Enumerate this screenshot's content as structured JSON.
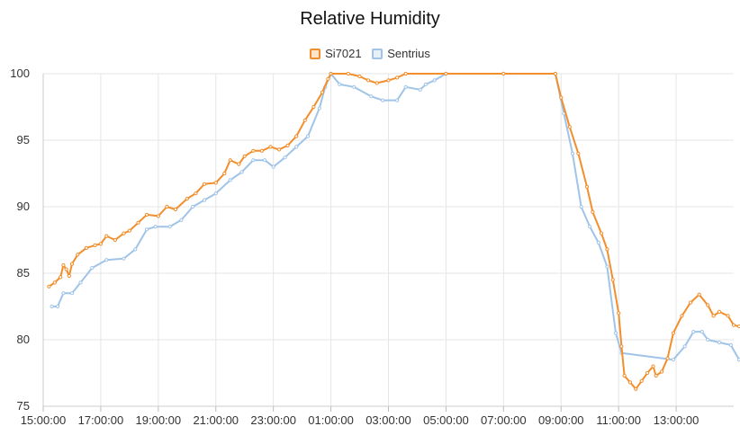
{
  "chart_data": {
    "type": "line",
    "title": "Relative Humidity",
    "xlabel": "",
    "ylabel": "",
    "ylim": [
      75,
      100
    ],
    "yticks": [
      75,
      80,
      85,
      90,
      95,
      100
    ],
    "xlim": [
      0,
      24
    ],
    "xticks": [
      {
        "h": 0,
        "label": "15:00:00"
      },
      {
        "h": 2,
        "label": "17:00:00"
      },
      {
        "h": 4,
        "label": "19:00:00"
      },
      {
        "h": 6,
        "label": "21:00:00"
      },
      {
        "h": 8,
        "label": "23:00:00"
      },
      {
        "h": 10,
        "label": "01:00:00"
      },
      {
        "h": 12,
        "label": "03:00:00"
      },
      {
        "h": 14,
        "label": "05:00:00"
      },
      {
        "h": 16,
        "label": "07:00:00"
      },
      {
        "h": 18,
        "label": "09:00:00"
      },
      {
        "h": 20,
        "label": "11:00:00"
      },
      {
        "h": 22,
        "label": "13:00:00"
      }
    ],
    "grid": true,
    "legend_position": "top-center",
    "series": [
      {
        "name": "Si7021",
        "color": "#f28e2b",
        "points": [
          [
            0.2,
            84.0
          ],
          [
            0.4,
            84.3
          ],
          [
            0.6,
            84.7
          ],
          [
            0.7,
            85.6
          ],
          [
            0.8,
            85.3
          ],
          [
            0.9,
            84.8
          ],
          [
            1.0,
            85.7
          ],
          [
            1.2,
            86.4
          ],
          [
            1.5,
            86.9
          ],
          [
            1.8,
            87.1
          ],
          [
            2.0,
            87.2
          ],
          [
            2.2,
            87.8
          ],
          [
            2.5,
            87.5
          ],
          [
            2.8,
            88.0
          ],
          [
            3.0,
            88.2
          ],
          [
            3.3,
            88.8
          ],
          [
            3.6,
            89.4
          ],
          [
            4.0,
            89.3
          ],
          [
            4.3,
            90.0
          ],
          [
            4.6,
            89.8
          ],
          [
            5.0,
            90.6
          ],
          [
            5.3,
            91.0
          ],
          [
            5.6,
            91.7
          ],
          [
            6.0,
            91.8
          ],
          [
            6.3,
            92.5
          ],
          [
            6.5,
            93.5
          ],
          [
            6.8,
            93.2
          ],
          [
            7.0,
            93.8
          ],
          [
            7.3,
            94.2
          ],
          [
            7.6,
            94.2
          ],
          [
            7.9,
            94.5
          ],
          [
            8.2,
            94.3
          ],
          [
            8.5,
            94.6
          ],
          [
            8.8,
            95.3
          ],
          [
            9.1,
            96.5
          ],
          [
            9.4,
            97.5
          ],
          [
            9.7,
            98.6
          ],
          [
            9.9,
            99.6
          ],
          [
            10.0,
            100.0
          ],
          [
            10.6,
            100.0
          ],
          [
            11.0,
            99.8
          ],
          [
            11.3,
            99.5
          ],
          [
            11.6,
            99.3
          ],
          [
            12.0,
            99.5
          ],
          [
            12.3,
            99.7
          ],
          [
            12.6,
            100.0
          ],
          [
            14.0,
            100.0
          ],
          [
            16.0,
            100.0
          ],
          [
            17.8,
            100.0
          ],
          [
            18.0,
            98.2
          ],
          [
            18.3,
            96.0
          ],
          [
            18.6,
            94.0
          ],
          [
            18.9,
            91.5
          ],
          [
            19.1,
            89.6
          ],
          [
            19.4,
            88.0
          ],
          [
            19.6,
            86.8
          ],
          [
            19.8,
            84.5
          ],
          [
            20.0,
            82.0
          ],
          [
            20.1,
            79.5
          ],
          [
            20.2,
            77.3
          ],
          [
            20.4,
            76.8
          ],
          [
            20.6,
            76.3
          ],
          [
            20.8,
            76.9
          ],
          [
            21.0,
            77.5
          ],
          [
            21.2,
            78.0
          ],
          [
            21.3,
            77.3
          ],
          [
            21.5,
            77.6
          ],
          [
            21.7,
            78.6
          ],
          [
            21.9,
            80.5
          ],
          [
            22.2,
            81.8
          ],
          [
            22.5,
            82.8
          ],
          [
            22.8,
            83.4
          ],
          [
            23.1,
            82.6
          ],
          [
            23.3,
            81.8
          ],
          [
            23.5,
            82.1
          ],
          [
            23.8,
            81.8
          ],
          [
            24.0,
            81.1
          ],
          [
            24.3,
            81.0
          ]
        ]
      },
      {
        "name": "Sentrius",
        "color": "#a0c4e8",
        "points": [
          [
            0.3,
            82.5
          ],
          [
            0.5,
            82.5
          ],
          [
            0.7,
            83.5
          ],
          [
            1.0,
            83.5
          ],
          [
            1.3,
            84.3
          ],
          [
            1.7,
            85.4
          ],
          [
            2.2,
            86.0
          ],
          [
            2.8,
            86.1
          ],
          [
            3.2,
            86.8
          ],
          [
            3.6,
            88.3
          ],
          [
            3.9,
            88.5
          ],
          [
            4.4,
            88.5
          ],
          [
            4.8,
            89.0
          ],
          [
            5.2,
            90.0
          ],
          [
            5.6,
            90.5
          ],
          [
            6.0,
            91.0
          ],
          [
            6.5,
            92.0
          ],
          [
            6.9,
            92.6
          ],
          [
            7.3,
            93.5
          ],
          [
            7.7,
            93.5
          ],
          [
            8.0,
            93.0
          ],
          [
            8.4,
            93.7
          ],
          [
            8.8,
            94.5
          ],
          [
            9.2,
            95.3
          ],
          [
            9.6,
            97.4
          ],
          [
            9.8,
            99.0
          ],
          [
            10.0,
            100.0
          ],
          [
            10.3,
            99.2
          ],
          [
            10.8,
            99.0
          ],
          [
            11.4,
            98.3
          ],
          [
            11.8,
            98.0
          ],
          [
            12.3,
            98.0
          ],
          [
            12.6,
            99.0
          ],
          [
            13.1,
            98.8
          ],
          [
            13.3,
            99.2
          ],
          [
            13.6,
            99.5
          ],
          [
            14.0,
            100.0
          ],
          [
            16.0,
            100.0
          ],
          [
            17.8,
            100.0
          ],
          [
            18.1,
            97.0
          ],
          [
            18.4,
            94.0
          ],
          [
            18.7,
            90.0
          ],
          [
            19.0,
            88.5
          ],
          [
            19.3,
            87.3
          ],
          [
            19.6,
            85.5
          ],
          [
            19.9,
            80.5
          ],
          [
            20.1,
            79.0
          ],
          [
            21.9,
            78.5
          ],
          [
            22.3,
            79.5
          ],
          [
            22.6,
            80.6
          ],
          [
            22.9,
            80.6
          ],
          [
            23.1,
            80.0
          ],
          [
            23.5,
            79.8
          ],
          [
            23.9,
            79.6
          ],
          [
            24.2,
            78.5
          ]
        ]
      }
    ]
  }
}
